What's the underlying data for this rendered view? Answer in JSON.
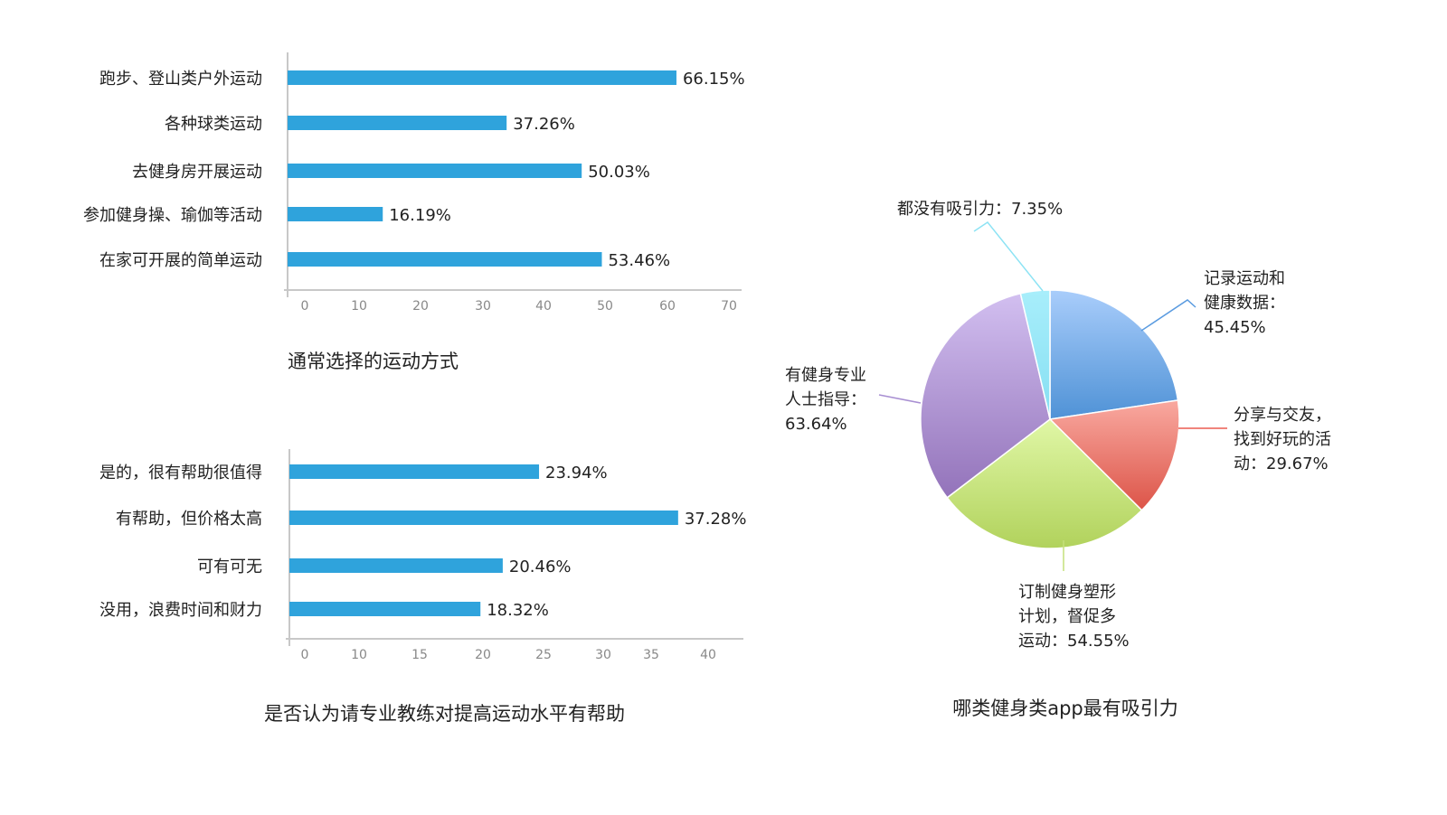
{
  "chart_data": [
    {
      "type": "bar",
      "orientation": "horizontal",
      "title": "通常选择的运动方式",
      "categories": [
        "跑步、登山类户外运动",
        "各种球类运动",
        "去健身房开展运动",
        "参加健身操、瑜伽等活动",
        "在家可开展的简单运动"
      ],
      "values": [
        66.15,
        37.26,
        50.03,
        16.19,
        53.46
      ],
      "value_labels": [
        "66.15%",
        "37.26%",
        "50.03%",
        "16.19%",
        "53.46%"
      ],
      "xticks": [
        "0",
        "10",
        "20",
        "30",
        "40",
        "50",
        "60",
        "70"
      ],
      "xlim": [
        0,
        70
      ],
      "color": "#2fa3dc"
    },
    {
      "type": "bar",
      "orientation": "horizontal",
      "title": "是否认为请专业教练对提高运动水平有帮助",
      "categories": [
        "是的，很有帮助很值得",
        "有帮助，但价格太高",
        "可有可无",
        "没用，浪费时间和财力"
      ],
      "values": [
        23.94,
        37.28,
        20.46,
        18.32
      ],
      "value_labels": [
        "23.94%",
        "37.28%",
        "20.46%",
        "18.32%"
      ],
      "xticks": [
        "0",
        "10",
        "15",
        "20",
        "25",
        "30",
        "35",
        "40"
      ],
      "xlim": [
        0,
        40
      ],
      "color": "#2fa3dc"
    },
    {
      "type": "pie",
      "title": "哪类健身类app最有吸引力",
      "slices": [
        {
          "label_lines": [
            "记录运动和",
            "健康数据：",
            "45.45%"
          ],
          "value": 45.45,
          "color_top": "#a9cdfb",
          "color_bottom": "#4f92d6"
        },
        {
          "label_lines": [
            "分享与交友，",
            "找到好玩的活",
            "动：29.67%"
          ],
          "value": 29.67,
          "color_top": "#f9a9a0",
          "color_bottom": "#dc5448"
        },
        {
          "label_lines": [
            "订制健身塑形",
            "计划，督促多",
            "运动：54.55%"
          ],
          "value": 54.55,
          "color_top": "#e0f7a6",
          "color_bottom": "#b1d25c"
        },
        {
          "label_lines": [
            "有健身专业",
            "人士指导：",
            "63.64%"
          ],
          "value": 63.64,
          "color_top": "#d2bff0",
          "color_bottom": "#9373ba"
        },
        {
          "label_lines": [
            "都没有吸引力：7.35%"
          ],
          "value": 7.35,
          "color_top": "#a8eefb",
          "color_bottom": "#86dff2"
        }
      ]
    }
  ]
}
